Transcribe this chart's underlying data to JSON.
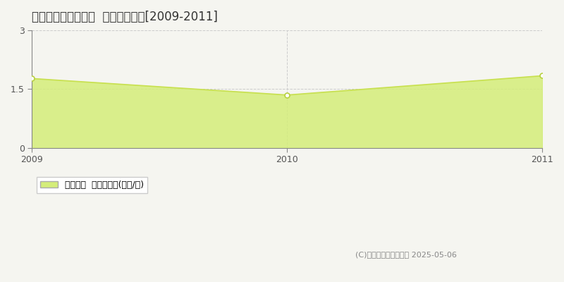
{
  "title": "耶麻郡西会津町群岡  土地価格推移[2009-2011]",
  "years": [
    2009,
    2010,
    2011
  ],
  "values": [
    1.77,
    1.35,
    1.84
  ],
  "ylim": [
    0,
    3
  ],
  "yticks": [
    0,
    1.5,
    3
  ],
  "line_color": "#c8e050",
  "fill_color": "#d4ed7a",
  "fill_alpha": 0.85,
  "marker_color": "#ffffff",
  "marker_edge_color": "#b8d040",
  "grid_color": "#cccccc",
  "bg_color": "#f5f5f0",
  "legend_label": "土地価格  平均坪単価(万円/坪)",
  "copyright_text": "(C)土地価格ドットコム 2025-05-06",
  "title_fontsize": 12,
  "axis_fontsize": 9,
  "legend_fontsize": 9
}
